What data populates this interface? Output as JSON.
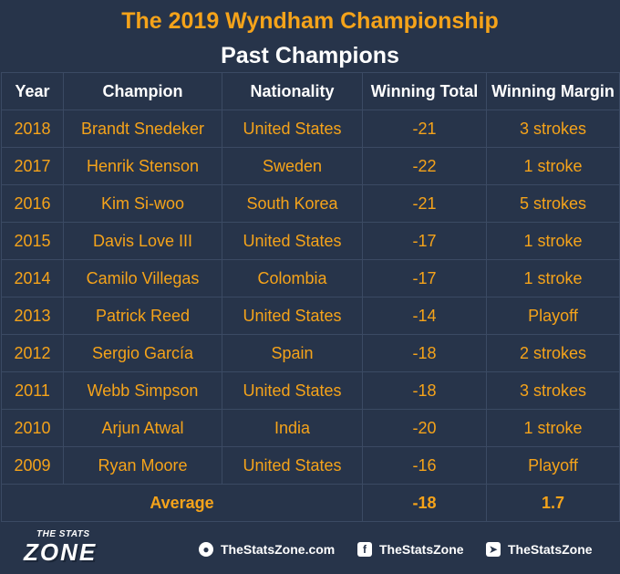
{
  "header": {
    "title": "The 2019 Wyndham Championship",
    "subtitle": "Past Champions"
  },
  "table": {
    "columns": [
      "Year",
      "Champion",
      "Nationality",
      "Winning Total",
      "Winning Margin"
    ],
    "rows": [
      {
        "year": "2018",
        "champion": "Brandt Snedeker",
        "nationality": "United States",
        "total": "-21",
        "margin": "3 strokes"
      },
      {
        "year": "2017",
        "champion": "Henrik Stenson",
        "nationality": "Sweden",
        "total": "-22",
        "margin": "1 stroke"
      },
      {
        "year": "2016",
        "champion": "Kim Si-woo",
        "nationality": "South Korea",
        "total": "-21",
        "margin": "5 strokes"
      },
      {
        "year": "2015",
        "champion": "Davis Love III",
        "nationality": "United States",
        "total": "-17",
        "margin": "1 stroke"
      },
      {
        "year": "2014",
        "champion": "Camilo Villegas",
        "nationality": "Colombia",
        "total": "-17",
        "margin": "1 stroke"
      },
      {
        "year": "2013",
        "champion": "Patrick Reed",
        "nationality": "United States",
        "total": "-14",
        "margin": "Playoff"
      },
      {
        "year": "2012",
        "champion": "Sergio García",
        "nationality": "Spain",
        "total": "-18",
        "margin": "2 strokes"
      },
      {
        "year": "2011",
        "champion": "Webb Simpson",
        "nationality": "United States",
        "total": "-18",
        "margin": "3 strokes"
      },
      {
        "year": "2010",
        "champion": "Arjun Atwal",
        "nationality": "India",
        "total": "-20",
        "margin": "1 stroke"
      },
      {
        "year": "2009",
        "champion": "Ryan Moore",
        "nationality": "United States",
        "total": "-16",
        "margin": "Playoff"
      }
    ],
    "average": {
      "label": "Average",
      "total": "-18",
      "margin": "1.7"
    }
  },
  "footer": {
    "logo_top": "THE STATS",
    "logo_main": "ZONE",
    "website": "TheStatsZone.com",
    "facebook": "TheStatsZone",
    "twitter": "TheStatsZone"
  },
  "colors": {
    "background": "#27344a",
    "accent": "#f5a31a",
    "grid": "#3b4a63",
    "text": "#ffffff"
  }
}
